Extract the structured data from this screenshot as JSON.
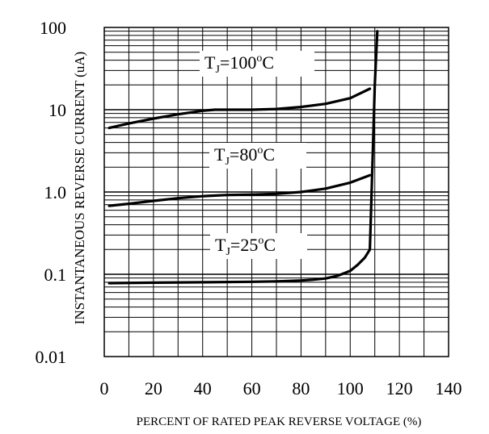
{
  "chart_data": {
    "type": "line",
    "title": "",
    "xlabel": "PERCENT OF RATED PEAK REVERSE VOLTAGE (%)",
    "ylabel": "INSTANTANEOUS REVERSE CURRENT (uA)",
    "xlim": [
      0,
      140
    ],
    "ylim": [
      0.01,
      100
    ],
    "y_scale": "log",
    "grid": true,
    "x_ticks": [
      "0",
      "20",
      "40",
      "60",
      "80",
      "100",
      "120",
      "140"
    ],
    "y_ticks": [
      "100",
      "10",
      "1.0",
      "0.1",
      "0.01"
    ],
    "series": [
      {
        "name": "TJ=100°C",
        "label_parts": {
          "prefix": "T",
          "sub": "J",
          "mid": "=100",
          "sup": "o",
          "suffix": "C"
        },
        "x": [
          2,
          10,
          20,
          30,
          40,
          45,
          50,
          60,
          70,
          80,
          90,
          100,
          108
        ],
        "y": [
          6.0,
          6.8,
          7.8,
          8.8,
          9.7,
          10.0,
          10.0,
          10.0,
          10.2,
          10.8,
          11.8,
          13.8,
          18.0
        ]
      },
      {
        "name": "TJ=80°C",
        "label_parts": {
          "prefix": "T",
          "sub": "J",
          "mid": "=80",
          "sup": "o",
          "suffix": "C"
        },
        "x": [
          2,
          10,
          20,
          30,
          40,
          50,
          60,
          70,
          80,
          90,
          100,
          108
        ],
        "y": [
          0.68,
          0.72,
          0.78,
          0.84,
          0.89,
          0.92,
          0.93,
          0.95,
          1.0,
          1.1,
          1.3,
          1.6
        ]
      },
      {
        "name": "TJ=25°C",
        "label_parts": {
          "prefix": "T",
          "sub": "J",
          "mid": "=25",
          "sup": "o",
          "suffix": "C"
        },
        "x": [
          2,
          20,
          40,
          60,
          70,
          80,
          85,
          90,
          95,
          100,
          103,
          106,
          108,
          109,
          110,
          111
        ],
        "y": [
          0.078,
          0.079,
          0.08,
          0.081,
          0.082,
          0.084,
          0.086,
          0.089,
          0.096,
          0.11,
          0.13,
          0.16,
          0.2,
          2.0,
          20,
          90
        ]
      }
    ]
  }
}
